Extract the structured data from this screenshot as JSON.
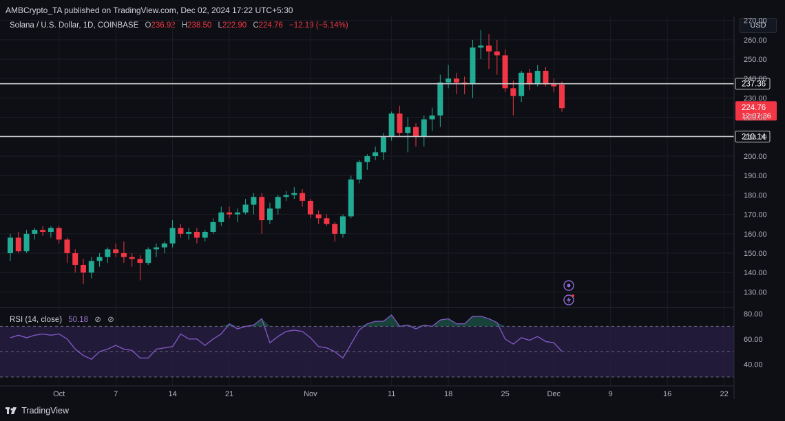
{
  "header": {
    "published": "AMBCrypto_TA published on TradingView.com, Dec 02, 2024 17:22 UTC+5:30"
  },
  "legend": {
    "symbol": "Solana / U.S. Dollar, 1D, COINBASE",
    "o_label": "O",
    "o": "236.92",
    "h_label": "H",
    "h": "238.50",
    "l_label": "L",
    "l": "222.90",
    "c_label": "C",
    "c": "224.76",
    "change": "−12.19 (−5.14%)"
  },
  "currency_button": "USD",
  "rsi_legend": {
    "label": "RSI (14, close)",
    "value": "50.18",
    "opt1": "⊘",
    "opt2": "⊘"
  },
  "brand": "TradingView",
  "colors": {
    "up": "#22ab94",
    "down": "#f23645",
    "rsi_line": "#7e57c2",
    "rsi_band": "#2a1f45",
    "level_line": "#c8c9cc",
    "price_tag": "#f23645"
  },
  "chart_data": [
    {
      "type": "candlestick",
      "symbol": "SOL/USD",
      "interval": "1D",
      "exchange": "COINBASE",
      "ylim": [
        122,
        272
      ],
      "y_ticks": [
        130,
        140,
        150,
        160,
        170,
        180,
        190,
        200,
        210,
        220,
        230,
        240,
        250,
        260,
        270
      ],
      "y_tick_labels": [
        "130.00",
        "140.00",
        "150.00",
        "160.00",
        "170.00",
        "180.00",
        "190.00",
        "200.00",
        "210.00",
        "220.00",
        "230.00",
        "240.00",
        "250.00",
        "260.00",
        "270.00"
      ],
      "x_tick_labels": [
        "Oct",
        "7",
        "14",
        "21",
        "Nov",
        "11",
        "18",
        "25",
        "Dec",
        "9",
        "16",
        "22"
      ],
      "x_tick_index": [
        6,
        13,
        20,
        27,
        37,
        47,
        54,
        61,
        67,
        74,
        81,
        88
      ],
      "horizontal_levels": [
        {
          "value": 237.36,
          "label": "237.36"
        },
        {
          "value": 210.14,
          "label": "210.14"
        }
      ],
      "last_price": {
        "value": 224.76,
        "label": "224.76",
        "countdown": "12:07:36"
      },
      "candles": [
        {
          "o": 150,
          "h": 160,
          "l": 146,
          "c": 158
        },
        {
          "o": 158,
          "h": 161,
          "l": 150,
          "c": 151
        },
        {
          "o": 151,
          "h": 162,
          "l": 150,
          "c": 160
        },
        {
          "o": 160,
          "h": 163,
          "l": 157,
          "c": 162
        },
        {
          "o": 162,
          "h": 164,
          "l": 159,
          "c": 161
        },
        {
          "o": 161,
          "h": 164,
          "l": 158,
          "c": 163
        },
        {
          "o": 163,
          "h": 164,
          "l": 155,
          "c": 157
        },
        {
          "o": 157,
          "h": 158,
          "l": 145,
          "c": 150
        },
        {
          "o": 150,
          "h": 152,
          "l": 140,
          "c": 144
        },
        {
          "o": 144,
          "h": 147,
          "l": 134,
          "c": 140
        },
        {
          "o": 140,
          "h": 148,
          "l": 137,
          "c": 146
        },
        {
          "o": 146,
          "h": 150,
          "l": 143,
          "c": 148
        },
        {
          "o": 148,
          "h": 153,
          "l": 145,
          "c": 152
        },
        {
          "o": 152,
          "h": 155,
          "l": 148,
          "c": 150
        },
        {
          "o": 150,
          "h": 156,
          "l": 145,
          "c": 148
        },
        {
          "o": 148,
          "h": 150,
          "l": 143,
          "c": 147
        },
        {
          "o": 147,
          "h": 149,
          "l": 136,
          "c": 145
        },
        {
          "o": 145,
          "h": 153,
          "l": 144,
          "c": 152
        },
        {
          "o": 152,
          "h": 155,
          "l": 148,
          "c": 153
        },
        {
          "o": 153,
          "h": 156,
          "l": 150,
          "c": 155
        },
        {
          "o": 155,
          "h": 167,
          "l": 153,
          "c": 163
        },
        {
          "o": 163,
          "h": 165,
          "l": 158,
          "c": 160
        },
        {
          "o": 160,
          "h": 163,
          "l": 157,
          "c": 161
        },
        {
          "o": 161,
          "h": 163,
          "l": 155,
          "c": 158
        },
        {
          "o": 158,
          "h": 162,
          "l": 156,
          "c": 161
        },
        {
          "o": 161,
          "h": 168,
          "l": 160,
          "c": 166
        },
        {
          "o": 166,
          "h": 174,
          "l": 164,
          "c": 171
        },
        {
          "o": 171,
          "h": 174,
          "l": 168,
          "c": 170
        },
        {
          "o": 170,
          "h": 173,
          "l": 166,
          "c": 171
        },
        {
          "o": 171,
          "h": 178,
          "l": 170,
          "c": 175
        },
        {
          "o": 175,
          "h": 181,
          "l": 170,
          "c": 179
        },
        {
          "o": 179,
          "h": 181,
          "l": 160,
          "c": 167
        },
        {
          "o": 167,
          "h": 176,
          "l": 165,
          "c": 173
        },
        {
          "o": 173,
          "h": 180,
          "l": 170,
          "c": 179
        },
        {
          "o": 179,
          "h": 182,
          "l": 177,
          "c": 180
        },
        {
          "o": 180,
          "h": 184,
          "l": 178,
          "c": 181
        },
        {
          "o": 181,
          "h": 183,
          "l": 174,
          "c": 177
        },
        {
          "o": 177,
          "h": 178,
          "l": 168,
          "c": 170
        },
        {
          "o": 170,
          "h": 172,
          "l": 165,
          "c": 168
        },
        {
          "o": 168,
          "h": 170,
          "l": 164,
          "c": 165
        },
        {
          "o": 165,
          "h": 166,
          "l": 156,
          "c": 160
        },
        {
          "o": 160,
          "h": 170,
          "l": 158,
          "c": 169
        },
        {
          "o": 169,
          "h": 190,
          "l": 168,
          "c": 188
        },
        {
          "o": 188,
          "h": 198,
          "l": 186,
          "c": 197
        },
        {
          "o": 197,
          "h": 201,
          "l": 193,
          "c": 200
        },
        {
          "o": 200,
          "h": 205,
          "l": 198,
          "c": 202
        },
        {
          "o": 202,
          "h": 212,
          "l": 198,
          "c": 210
        },
        {
          "o": 210,
          "h": 223,
          "l": 208,
          "c": 222
        },
        {
          "o": 222,
          "h": 226,
          "l": 210,
          "c": 212
        },
        {
          "o": 212,
          "h": 220,
          "l": 202,
          "c": 215
        },
        {
          "o": 215,
          "h": 217,
          "l": 205,
          "c": 210
        },
        {
          "o": 210,
          "h": 221,
          "l": 205,
          "c": 219
        },
        {
          "o": 219,
          "h": 225,
          "l": 213,
          "c": 221
        },
        {
          "o": 221,
          "h": 242,
          "l": 215,
          "c": 238
        },
        {
          "o": 238,
          "h": 247,
          "l": 235,
          "c": 240
        },
        {
          "o": 240,
          "h": 243,
          "l": 232,
          "c": 238
        },
        {
          "o": 238,
          "h": 241,
          "l": 232,
          "c": 237
        },
        {
          "o": 237,
          "h": 260,
          "l": 230,
          "c": 256
        },
        {
          "o": 256,
          "h": 265,
          "l": 250,
          "c": 257
        },
        {
          "o": 257,
          "h": 263,
          "l": 245,
          "c": 254
        },
        {
          "o": 254,
          "h": 260,
          "l": 242,
          "c": 252
        },
        {
          "o": 252,
          "h": 255,
          "l": 233,
          "c": 235
        },
        {
          "o": 235,
          "h": 239,
          "l": 221,
          "c": 231
        },
        {
          "o": 231,
          "h": 244,
          "l": 228,
          "c": 243
        },
        {
          "o": 243,
          "h": 245,
          "l": 234,
          "c": 237
        },
        {
          "o": 237,
          "h": 247,
          "l": 236,
          "c": 244
        },
        {
          "o": 244,
          "h": 246,
          "l": 236,
          "c": 237
        },
        {
          "o": 237,
          "h": 240,
          "l": 233,
          "c": 236
        },
        {
          "o": 236.92,
          "h": 238.5,
          "l": 222.9,
          "c": 224.76
        }
      ]
    },
    {
      "type": "line",
      "name": "RSI (14, close)",
      "ylim": [
        25,
        85
      ],
      "y_ticks": [
        40,
        60,
        80
      ],
      "y_tick_labels": [
        "40.00",
        "60.00",
        "80.00"
      ],
      "bands": [
        30,
        50,
        70
      ],
      "values": [
        61,
        63,
        61,
        63,
        64,
        63,
        64,
        60,
        52,
        47,
        44,
        50,
        52,
        55,
        52,
        51,
        45,
        45,
        52,
        53,
        54,
        64,
        60,
        60,
        55,
        60,
        64,
        72,
        68,
        70,
        71,
        76,
        57,
        62,
        66,
        67,
        66,
        61,
        54,
        53,
        50,
        45,
        56,
        67,
        72,
        74,
        74,
        79,
        70,
        71,
        68,
        71,
        70,
        75,
        76,
        72,
        72,
        78,
        78,
        76,
        73,
        60,
        56,
        61,
        59,
        62,
        58,
        57,
        50.18
      ]
    }
  ]
}
